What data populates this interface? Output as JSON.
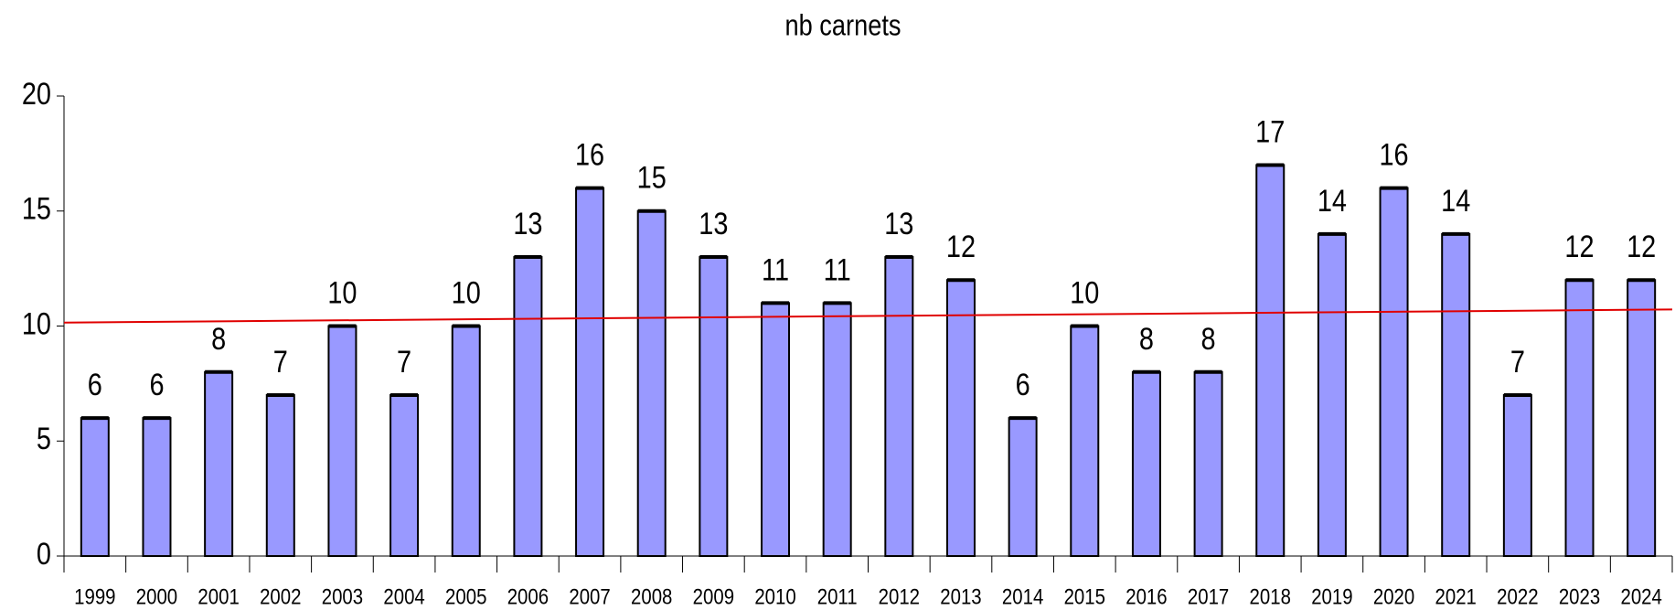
{
  "chart_data": {
    "type": "bar",
    "title": "nb carnets",
    "categories": [
      "1999",
      "2000",
      "2001",
      "2002",
      "2003",
      "2004",
      "2005",
      "2006",
      "2007",
      "2008",
      "2009",
      "2010",
      "2011",
      "2012",
      "2013",
      "2014",
      "2015",
      "2016",
      "2017",
      "2018",
      "2019",
      "2020",
      "2021",
      "2022",
      "2023",
      "2024"
    ],
    "values": [
      6,
      6,
      8,
      7,
      10,
      7,
      10,
      13,
      16,
      15,
      13,
      11,
      11,
      13,
      12,
      6,
      10,
      8,
      8,
      17,
      14,
      16,
      14,
      7,
      12,
      12
    ],
    "color": "#9999ff",
    "ylim": [
      0,
      20
    ],
    "yticks": [
      0,
      5,
      10,
      15,
      20
    ],
    "grid": false,
    "trendline": {
      "color": "#e00000",
      "values": [
        10.15,
        10.72
      ]
    }
  }
}
